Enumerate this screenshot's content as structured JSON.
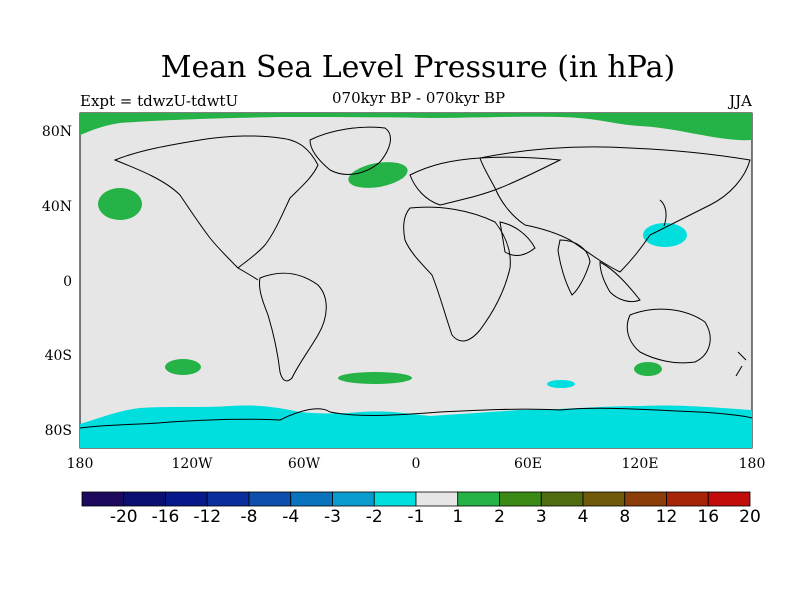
{
  "title": "Mean Sea Level Pressure (in hPa)",
  "experiment": "Expt = tdwzU-tdwtU",
  "period": "070kyr BP - 070kyr BP",
  "season": "JJA",
  "lat_ticks": [
    "80N",
    "40N",
    "0",
    "40S",
    "80S"
  ],
  "lon_ticks": [
    "180",
    "120W",
    "60W",
    "0",
    "60E",
    "120E",
    "180"
  ],
  "colorbar": {
    "labels": [
      "-20",
      "-16",
      "-12",
      "-8",
      "-4",
      "-3",
      "-2",
      "-1",
      "1",
      "2",
      "3",
      "4",
      "8",
      "12",
      "16",
      "20"
    ],
    "colors": [
      "#1d0a5e",
      "#0c0f72",
      "#07188a",
      "#0a2f9c",
      "#0e4fae",
      "#0a73bd",
      "#0b9ccf",
      "#00dede",
      "#e6e6e6",
      "#25b246",
      "#3c8a16",
      "#506c10",
      "#6e5a0a",
      "#8c3e08",
      "#a82408",
      "#c20c0c"
    ]
  },
  "colors": {
    "background_field": "#e6e6e6",
    "positive_1_2": "#25b246",
    "negative_2_1": "#00dede"
  }
}
